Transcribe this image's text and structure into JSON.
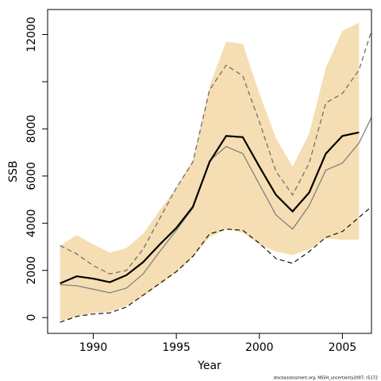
{
  "chart_data": {
    "type": "line",
    "xlabel": "Year",
    "ylabel": "SSB",
    "footnote": "stockassessment.org, NSSH_uncertainty2007, r5172",
    "xlim": [
      1987.25,
      2006.75
    ],
    "ylim": [
      -670,
      13060
    ],
    "xticks": [
      1990,
      1995,
      2000,
      2005
    ],
    "yticks": [
      0,
      2000,
      4000,
      6000,
      8000,
      12000
    ],
    "yticks_unlabeled": [
      10000
    ],
    "band": {
      "color": "#f5deb3",
      "x": [
        1988,
        1989,
        1990,
        1991,
        1992,
        1993,
        1994,
        1995,
        1996,
        1997,
        1998,
        1999,
        2000,
        2001,
        2002,
        2003,
        2004,
        2005,
        2006
      ],
      "lower": [
        -150,
        50,
        200,
        250,
        500,
        900,
        1400,
        1900,
        2550,
        3400,
        3750,
        3600,
        3100,
        2800,
        2650,
        2900,
        3350,
        3300,
        3300
      ],
      "upper": [
        3050,
        3500,
        3100,
        2750,
        2950,
        3550,
        4550,
        5500,
        6700,
        9800,
        11700,
        11600,
        9500,
        7600,
        6400,
        7800,
        10600,
        12150,
        12500
      ]
    },
    "series": [
      {
        "color": "#808080",
        "style": "solid",
        "width": 1.3,
        "x": [
          1988,
          1989,
          1990,
          1991,
          1992,
          1993,
          1994,
          1995,
          1996,
          1997,
          1998,
          1999,
          2000,
          2001,
          2002,
          2003,
          2004,
          2005,
          2006,
          2007
        ],
        "values": [
          1400,
          1350,
          1200,
          1050,
          1250,
          1850,
          2800,
          3700,
          4650,
          6650,
          7250,
          6950,
          5650,
          4350,
          3750,
          4750,
          6250,
          6550,
          7400,
          8850
        ]
      },
      {
        "color": "#707070",
        "style": "dashed",
        "width": 1.3,
        "x": [
          1988,
          1989,
          1990,
          1991,
          1992,
          1993,
          1994,
          1995,
          1996,
          1997,
          1998,
          1999,
          2000,
          2001,
          2002,
          2003,
          2004,
          2005,
          2006,
          2007
        ],
        "values": [
          3050,
          2700,
          2200,
          1850,
          2000,
          2900,
          4200,
          5500,
          6600,
          9650,
          10700,
          10250,
          8300,
          6200,
          5200,
          6550,
          9100,
          9500,
          10500,
          12700
        ]
      },
      {
        "color": "#000000",
        "style": "dashed",
        "width": 1.1,
        "x": [
          1988,
          1989,
          1990,
          1991,
          1992,
          1993,
          1994,
          1995,
          1996,
          1997,
          1998,
          1999,
          2000,
          2001,
          2002,
          2003,
          2004,
          2005,
          2006,
          2007
        ],
        "values": [
          -200,
          50,
          150,
          200,
          450,
          950,
          1450,
          1950,
          2600,
          3550,
          3750,
          3700,
          3150,
          2500,
          2300,
          2800,
          3400,
          3650,
          4250,
          4850
        ]
      },
      {
        "color": "#000000",
        "style": "solid",
        "width": 2.2,
        "x": [
          1988,
          1989,
          1990,
          1991,
          1992,
          1993,
          1994,
          1995,
          1996,
          1997,
          1998,
          1999,
          2000,
          2001,
          2002,
          2003,
          2004,
          2005,
          2006
        ],
        "values": [
          1450,
          1750,
          1650,
          1500,
          1800,
          2350,
          3100,
          3800,
          4700,
          6600,
          7700,
          7650,
          6400,
          5200,
          4500,
          5300,
          6950,
          7700,
          7850
        ]
      }
    ]
  }
}
